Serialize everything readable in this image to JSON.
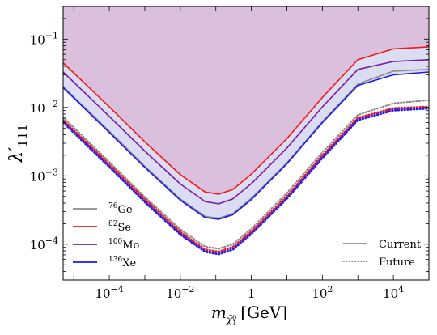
{
  "chart_data": {
    "type": "line",
    "title": "",
    "xlabel": "m_{χ̃₁⁰} [GeV]",
    "xlabel_main": "m",
    "xlabel_sub": "χ̃",
    "xlabel_subsub": "0",
    "xlabel_subsub2": "1",
    "xlabel_unit": "[GeV]",
    "ylabel": "λ′111",
    "ylabel_main": "λ′",
    "ylabel_sub": "111",
    "xscale": "log",
    "yscale": "log",
    "xlim": [
      5e-06,
      100000.0
    ],
    "ylim": [
      3e-05,
      0.3
    ],
    "x_ticks": [
      {
        "value": 0.0001,
        "base": "10",
        "exp": "−4"
      },
      {
        "value": 0.01,
        "base": "10",
        "exp": "−2"
      },
      {
        "value": 1,
        "base": "1",
        "exp": ""
      },
      {
        "value": 100,
        "base": "10",
        "exp": "2"
      },
      {
        "value": 10000,
        "base": "10",
        "exp": "4"
      }
    ],
    "y_ticks": [
      {
        "value": 0.0001,
        "base": "10",
        "exp": "−4"
      },
      {
        "value": 0.001,
        "base": "10",
        "exp": "−3"
      },
      {
        "value": 0.01,
        "base": "10",
        "exp": "−2"
      },
      {
        "value": 0.1,
        "base": "10",
        "exp": "−1"
      }
    ],
    "excluded_region_color": "#dbc0de",
    "band_color": "#dcdcf2",
    "series": [
      {
        "name": "Ge",
        "isotope": "76",
        "color": "#8c8c8c",
        "style": "solid",
        "points": [
          [
            5e-06,
            0.0202
          ],
          [
            0.0001,
            0.0045
          ],
          [
            0.001,
            0.00138
          ],
          [
            0.01,
            0.00046
          ],
          [
            0.05,
            0.000255
          ],
          [
            0.12,
            0.00024
          ],
          [
            0.3,
            0.00028
          ],
          [
            1,
            0.00047
          ],
          [
            10,
            0.00155
          ],
          [
            100,
            0.0062
          ],
          [
            1000,
            0.022
          ],
          [
            10000,
            0.034
          ],
          [
            100000,
            0.036
          ]
        ]
      },
      {
        "name": "Se",
        "isotope": "82",
        "color": "#f01818",
        "style": "solid",
        "points": [
          [
            5e-06,
            0.045
          ],
          [
            0.0001,
            0.0102
          ],
          [
            0.001,
            0.00315
          ],
          [
            0.01,
            0.00104
          ],
          [
            0.05,
            0.00058
          ],
          [
            0.12,
            0.00054
          ],
          [
            0.3,
            0.00063
          ],
          [
            1,
            0.00106
          ],
          [
            10,
            0.0035
          ],
          [
            100,
            0.014
          ],
          [
            1000,
            0.05
          ],
          [
            10000,
            0.072
          ],
          [
            100000,
            0.077
          ]
        ]
      },
      {
        "name": "Mo",
        "isotope": "100",
        "color": "#7a1ea0",
        "style": "solid",
        "points": [
          [
            5e-06,
            0.033
          ],
          [
            0.0001,
            0.0074
          ],
          [
            0.001,
            0.0023
          ],
          [
            0.01,
            0.00076
          ],
          [
            0.05,
            0.00042
          ],
          [
            0.12,
            0.00039
          ],
          [
            0.3,
            0.00046
          ],
          [
            1,
            0.00077
          ],
          [
            10,
            0.00255
          ],
          [
            100,
            0.0102
          ],
          [
            1000,
            0.036
          ],
          [
            10000,
            0.047
          ],
          [
            100000,
            0.05
          ]
        ]
      },
      {
        "name": "Xe",
        "isotope": "136",
        "color": "#1a1aee",
        "style": "solid",
        "points": [
          [
            5e-06,
            0.0195
          ],
          [
            0.0001,
            0.0043
          ],
          [
            0.001,
            0.00133
          ],
          [
            0.01,
            0.00044
          ],
          [
            0.05,
            0.000245
          ],
          [
            0.12,
            0.000232
          ],
          [
            0.3,
            0.00027
          ],
          [
            1,
            0.00045
          ],
          [
            10,
            0.0015
          ],
          [
            100,
            0.006
          ],
          [
            1000,
            0.021
          ],
          [
            10000,
            0.03
          ],
          [
            100000,
            0.033
          ]
        ]
      },
      {
        "name": "Ge",
        "isotope": "76",
        "color": "#8c8c8c",
        "style": "dotted",
        "points": [
          [
            5e-06,
            0.0072
          ],
          [
            0.0001,
            0.0016
          ],
          [
            0.001,
            0.00049
          ],
          [
            0.01,
            0.000165
          ],
          [
            0.05,
            9.2e-05
          ],
          [
            0.12,
            8.6e-05
          ],
          [
            0.3,
            0.0001
          ],
          [
            1,
            0.000168
          ],
          [
            10,
            0.00056
          ],
          [
            100,
            0.0022
          ],
          [
            1000,
            0.0078
          ],
          [
            10000,
            0.0115
          ],
          [
            100000,
            0.0128
          ]
        ]
      },
      {
        "name": "Se",
        "isotope": "82",
        "color": "#f01818",
        "style": "dotted",
        "points": [
          [
            5e-06,
            0.0066
          ],
          [
            0.0001,
            0.00148
          ],
          [
            0.001,
            0.00046
          ],
          [
            0.01,
            0.000152
          ],
          [
            0.05,
            8.4e-05
          ],
          [
            0.12,
            7.8e-05
          ],
          [
            0.3,
            9.2e-05
          ],
          [
            1,
            0.000154
          ],
          [
            10,
            0.00051
          ],
          [
            100,
            0.002
          ],
          [
            1000,
            0.0071
          ],
          [
            10000,
            0.0098
          ],
          [
            100000,
            0.0103
          ]
        ]
      },
      {
        "name": "Mo",
        "isotope": "100",
        "color": "#7a1ea0",
        "style": "dotted",
        "points": [
          [
            5e-06,
            0.0063
          ],
          [
            0.0001,
            0.0014
          ],
          [
            0.001,
            0.00043
          ],
          [
            0.01,
            0.000144
          ],
          [
            0.05,
            8e-05
          ],
          [
            0.12,
            7.4e-05
          ],
          [
            0.3,
            8.7e-05
          ],
          [
            1,
            0.000146
          ],
          [
            10,
            0.00048
          ],
          [
            100,
            0.0019
          ],
          [
            1000,
            0.0068
          ],
          [
            10000,
            0.0094
          ],
          [
            100000,
            0.0099
          ]
        ]
      },
      {
        "name": "Xe",
        "isotope": "136",
        "color": "#1a1aee",
        "style": "dotted",
        "points": [
          [
            5e-06,
            0.006
          ],
          [
            0.0001,
            0.00134
          ],
          [
            0.001,
            0.00041
          ],
          [
            0.01,
            0.000138
          ],
          [
            0.05,
            7.7e-05
          ],
          [
            0.12,
            7.1e-05
          ],
          [
            0.3,
            8.3e-05
          ],
          [
            1,
            0.00014
          ],
          [
            10,
            0.00046
          ],
          [
            100,
            0.0018
          ],
          [
            1000,
            0.0065
          ],
          [
            10000,
            0.009
          ],
          [
            100000,
            0.0096
          ]
        ]
      }
    ],
    "legend_isotopes": [
      {
        "isotope": "76",
        "element": "Ge",
        "color": "#8c8c8c"
      },
      {
        "isotope": "82",
        "element": "Se",
        "color": "#f01818"
      },
      {
        "isotope": "100",
        "element": "Mo",
        "color": "#7a1ea0"
      },
      {
        "isotope": "136",
        "element": "Xe",
        "color": "#1a1aee"
      }
    ],
    "legend_styles": [
      {
        "label": "Current",
        "style": "solid"
      },
      {
        "label": "Future",
        "style": "dotted"
      }
    ],
    "legend_placement": [
      "lower-left",
      "lower-right"
    ]
  }
}
